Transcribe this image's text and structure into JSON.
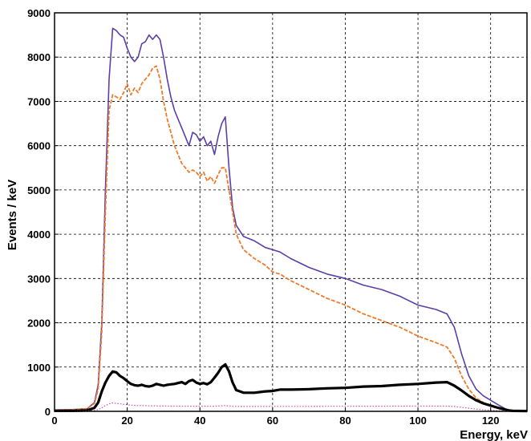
{
  "chart_data": {
    "type": "line",
    "title": "",
    "xlabel": "Energy, keV",
    "ylabel": "Events / keV",
    "xlim": [
      0,
      130
    ],
    "ylim": [
      0,
      9000
    ],
    "xticks": [
      0,
      20,
      40,
      60,
      80,
      100,
      120
    ],
    "yticks": [
      0,
      1000,
      2000,
      3000,
      4000,
      5000,
      6000,
      7000,
      8000,
      9000
    ],
    "grid": true,
    "legend": "none",
    "series": [
      {
        "color": "#5b3fa8",
        "style": "solid",
        "x": [
          0,
          5,
          9,
          11,
          12,
          13,
          14,
          15,
          16,
          17,
          18,
          19,
          20,
          21,
          22,
          23,
          24,
          25,
          26,
          27,
          28,
          29,
          30,
          31,
          32,
          33,
          34,
          35,
          36,
          37,
          38,
          39,
          40,
          41,
          42,
          43,
          44,
          45,
          46,
          47,
          48,
          49,
          50,
          52,
          55,
          58,
          60,
          62,
          65,
          70,
          75,
          80,
          85,
          90,
          95,
          100,
          105,
          108,
          110,
          112,
          114,
          116,
          118,
          120,
          122,
          124,
          125,
          126,
          130
        ],
        "y": [
          30,
          40,
          60,
          200,
          600,
          2000,
          5000,
          7500,
          8650,
          8600,
          8500,
          8450,
          8200,
          8000,
          7900,
          8000,
          8300,
          8350,
          8500,
          8400,
          8500,
          8400,
          8000,
          7500,
          7100,
          6800,
          6600,
          6400,
          6200,
          6000,
          6300,
          6250,
          6100,
          6200,
          6000,
          6100,
          5800,
          6200,
          6500,
          6650,
          5500,
          4600,
          4200,
          3950,
          3850,
          3700,
          3650,
          3600,
          3450,
          3250,
          3100,
          3000,
          2850,
          2750,
          2600,
          2400,
          2300,
          2200,
          1900,
          1300,
          800,
          500,
          350,
          250,
          150,
          60,
          30,
          20,
          10
        ]
      },
      {
        "color": "#f07a2a",
        "style": "dashed",
        "x": [
          0,
          5,
          9,
          11,
          12,
          13,
          14,
          15,
          16,
          17,
          18,
          19,
          20,
          21,
          22,
          23,
          24,
          25,
          26,
          27,
          28,
          29,
          30,
          31,
          32,
          33,
          34,
          35,
          36,
          37,
          38,
          39,
          40,
          41,
          42,
          43,
          44,
          45,
          46,
          47,
          48,
          49,
          50,
          52,
          55,
          58,
          60,
          62,
          65,
          70,
          75,
          80,
          85,
          90,
          95,
          100,
          105,
          108,
          110,
          112,
          114,
          116,
          118,
          120,
          122,
          124,
          125,
          126,
          130
        ],
        "y": [
          30,
          40,
          60,
          180,
          500,
          1800,
          4500,
          6800,
          7150,
          7100,
          7050,
          7200,
          7400,
          7150,
          7300,
          7200,
          7400,
          7500,
          7600,
          7750,
          7800,
          7500,
          7000,
          6600,
          6300,
          6000,
          5800,
          5600,
          5500,
          5400,
          5450,
          5400,
          5300,
          5400,
          5200,
          5300,
          5150,
          5350,
          5500,
          5500,
          5000,
          4500,
          4000,
          3650,
          3450,
          3300,
          3150,
          3100,
          2950,
          2750,
          2550,
          2400,
          2200,
          2050,
          1900,
          1700,
          1550,
          1450,
          1200,
          800,
          500,
          300,
          200,
          120,
          70,
          40,
          25,
          15,
          10
        ]
      },
      {
        "color": "#000000",
        "style": "solid-markers",
        "x": [
          0,
          5,
          9,
          11,
          12,
          13,
          14,
          15,
          16,
          17,
          18,
          19,
          20,
          21,
          22,
          23,
          24,
          25,
          26,
          27,
          28,
          29,
          30,
          31,
          32,
          33,
          34,
          35,
          36,
          37,
          38,
          39,
          40,
          41,
          42,
          43,
          44,
          45,
          46,
          47,
          48,
          49,
          50,
          52,
          55,
          58,
          60,
          62,
          65,
          70,
          75,
          80,
          85,
          90,
          95,
          100,
          105,
          108,
          110,
          112,
          114,
          116,
          118,
          120,
          122,
          124,
          125,
          126,
          130
        ],
        "y": [
          10,
          10,
          20,
          80,
          200,
          450,
          650,
          800,
          900,
          880,
          800,
          750,
          680,
          620,
          590,
          580,
          600,
          570,
          560,
          580,
          620,
          600,
          580,
          600,
          610,
          620,
          640,
          660,
          620,
          680,
          710,
          650,
          620,
          640,
          610,
          660,
          760,
          870,
          1000,
          1060,
          900,
          650,
          480,
          420,
          420,
          450,
          460,
          490,
          490,
          500,
          520,
          530,
          560,
          570,
          600,
          620,
          650,
          660,
          580,
          470,
          350,
          250,
          180,
          130,
          80,
          40,
          20,
          10,
          5
        ]
      },
      {
        "color": "#d24fa6",
        "style": "dotted",
        "x": [
          0,
          5,
          9,
          11,
          12,
          13,
          14,
          15,
          16,
          17,
          18,
          19,
          20,
          21,
          22,
          23,
          24,
          25,
          26,
          27,
          28,
          29,
          30,
          31,
          32,
          33,
          34,
          35,
          36,
          37,
          38,
          39,
          40,
          41,
          42,
          43,
          44,
          45,
          46,
          47,
          48,
          49,
          50,
          52,
          55,
          58,
          60,
          62,
          65,
          70,
          75,
          80,
          85,
          90,
          95,
          100,
          105,
          108,
          110,
          112,
          114,
          116,
          118,
          120,
          122,
          124,
          125,
          126,
          130
        ],
        "y": [
          5,
          5,
          10,
          20,
          40,
          80,
          130,
          170,
          190,
          180,
          170,
          160,
          150,
          140,
          135,
          130,
          130,
          128,
          125,
          125,
          125,
          120,
          120,
          120,
          118,
          118,
          118,
          116,
          115,
          115,
          115,
          115,
          115,
          115,
          115,
          115,
          115,
          120,
          125,
          130,
          120,
          115,
          110,
          110,
          110,
          110,
          112,
          112,
          112,
          112,
          114,
          114,
          116,
          116,
          118,
          118,
          118,
          118,
          110,
          90,
          70,
          50,
          35,
          25,
          15,
          10,
          6,
          4,
          2
        ]
      }
    ]
  }
}
